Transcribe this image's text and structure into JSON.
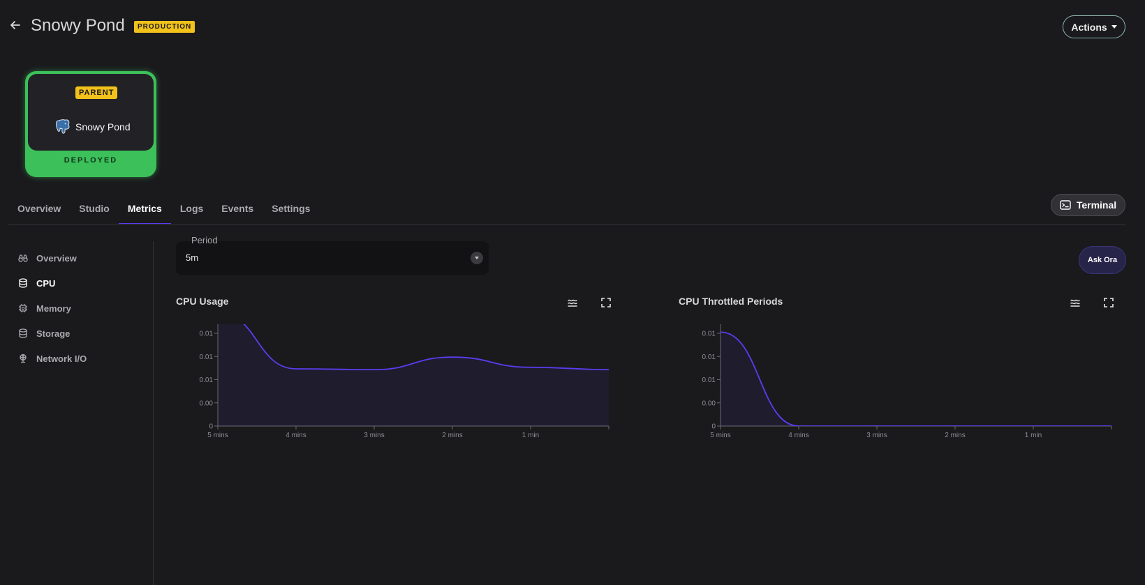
{
  "header": {
    "title": "Snowy Pond",
    "env_badge": "PRODUCTION",
    "actions_label": "Actions",
    "back_icon": "arrow-left-icon"
  },
  "node": {
    "badge": "PARENT",
    "name": "Snowy Pond",
    "status": "DEPLOYED",
    "icon": "postgres-elephant-icon",
    "status_color": "#3cc05a"
  },
  "tabs": [
    {
      "label": "Overview"
    },
    {
      "label": "Studio"
    },
    {
      "label": "Metrics",
      "active": true
    },
    {
      "label": "Logs"
    },
    {
      "label": "Events"
    },
    {
      "label": "Settings"
    }
  ],
  "terminal_label": "Terminal",
  "side_nav": [
    {
      "label": "Overview",
      "icon": "binoculars-icon"
    },
    {
      "label": "CPU",
      "icon": "database-icon",
      "active": true
    },
    {
      "label": "Memory",
      "icon": "chip-icon"
    },
    {
      "label": "Storage",
      "icon": "database-icon"
    },
    {
      "label": "Network I/O",
      "icon": "globe-icon"
    }
  ],
  "period": {
    "label": "Period",
    "value": "5m"
  },
  "ask_label": "Ask Ora",
  "accent_color": "#5b3df0",
  "chart_data": [
    {
      "type": "area",
      "title": "CPU Usage",
      "x_ticks": [
        "5 mins",
        "4 mins",
        "3 mins",
        "2 mins",
        "1 min"
      ],
      "y_ticks": [
        "0",
        "0.00",
        "0.01",
        "0.01",
        "0.01"
      ],
      "ylim": [
        0,
        0.013
      ],
      "x": [
        5.0,
        4.0,
        3.0,
        2.0,
        1.0,
        0
      ],
      "values": [
        0.0145,
        0.0073,
        0.0072,
        0.0088,
        0.0075,
        0.0072
      ]
    },
    {
      "type": "area",
      "title": "CPU Throttled Periods",
      "x_ticks": [
        "5 mins",
        "4 mins",
        "3 mins",
        "2 mins",
        "1 min"
      ],
      "y_ticks": [
        "0",
        "0.00",
        "0.01",
        "0.01",
        "0.01"
      ],
      "ylim": [
        0,
        0.013
      ],
      "x": [
        5.0,
        4.0,
        3.0,
        2.0,
        1.0,
        0
      ],
      "values": [
        0.012,
        0,
        0,
        0,
        0,
        0
      ]
    }
  ]
}
